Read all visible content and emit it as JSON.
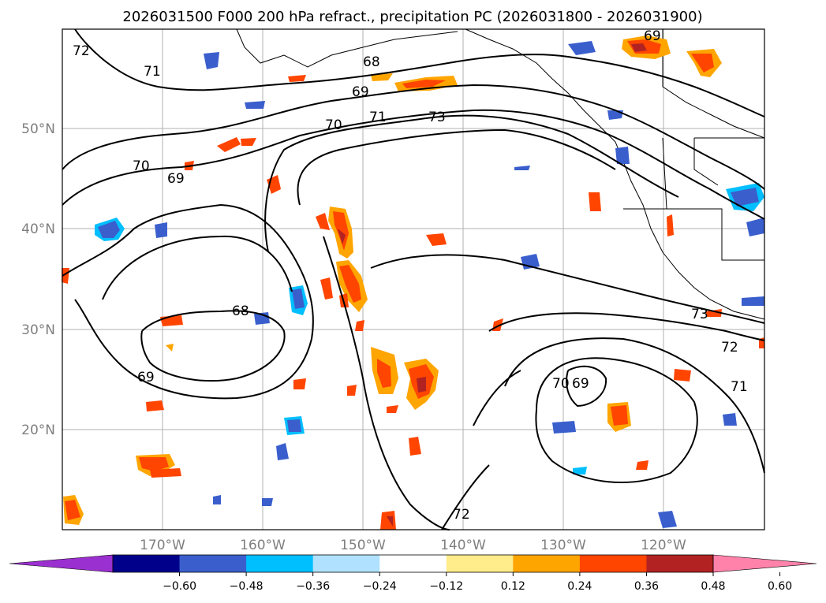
{
  "title": "2026031500 F000 200 hPa refract., precipitation PC (2026031800 - 2026031900)",
  "lat_labels": [
    "50°N",
    "40°N",
    "30°N",
    "20°N"
  ],
  "lon_labels": [
    "170°W",
    "160°W",
    "150°W",
    "140°W",
    "130°W",
    "120°W"
  ],
  "contour_labels": [
    "72",
    "71",
    "68",
    "69",
    "70",
    "71",
    "73",
    "70",
    "69",
    "68",
    "69",
    "70",
    "69",
    "71",
    "72",
    "73",
    "72",
    "69"
  ],
  "colorbar": {
    "ticks": [
      "−0.60",
      "−0.48",
      "−0.36",
      "−0.24",
      "−0.12",
      "0.12",
      "0.24",
      "0.36",
      "0.48",
      "0.60"
    ],
    "colors": [
      "#9b30d0",
      "#00008b",
      "#3a5fcd",
      "#00bfff",
      "#b0e2ff",
      "#ffffff",
      "#ffec8b",
      "#ffa500",
      "#ff4500",
      "#b22222",
      "#ff82ab"
    ]
  }
}
